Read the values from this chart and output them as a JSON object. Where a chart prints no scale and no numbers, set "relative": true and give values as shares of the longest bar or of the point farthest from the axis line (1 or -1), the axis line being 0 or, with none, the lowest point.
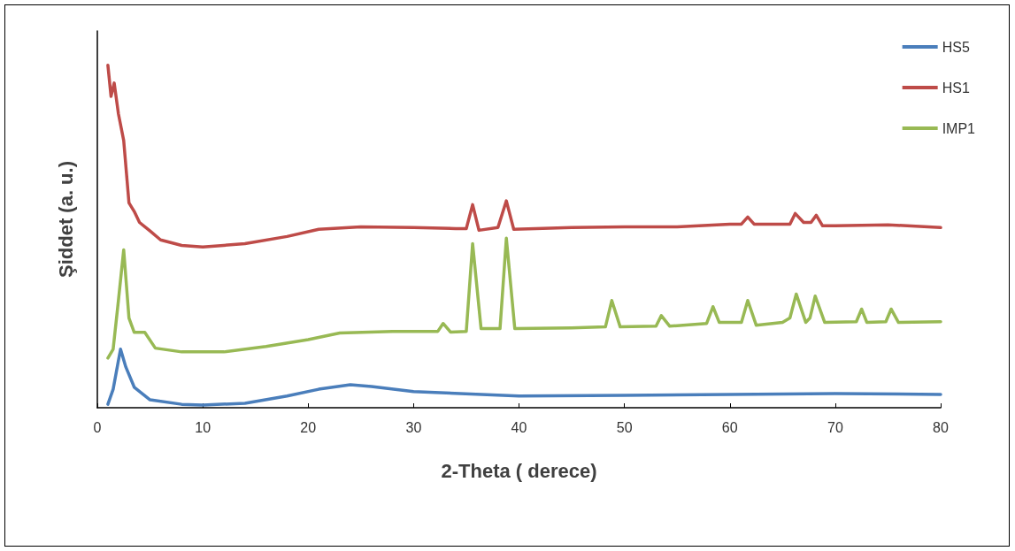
{
  "chart_data": {
    "type": "line",
    "relative": true,
    "xlabel": "2-Theta ( derece)",
    "ylabel": "Şiddet (a. u.)",
    "xlim": [
      0,
      80
    ],
    "xticks": [
      0,
      10,
      20,
      30,
      40,
      50,
      60,
      70,
      80
    ],
    "grid": false,
    "legend": "top right",
    "marker": "none",
    "line_style": "solid",
    "series": [
      {
        "name": "HS5",
        "color": "#4a7ebb",
        "x": [
          1,
          1.5,
          2.2,
          2.7,
          3.5,
          5,
          8,
          10,
          14,
          18,
          21,
          24,
          26,
          30,
          40,
          50,
          60,
          70,
          80
        ],
        "values": [
          0.01,
          0.054,
          0.171,
          0.119,
          0.06,
          0.023,
          0.01,
          0.008,
          0.013,
          0.034,
          0.054,
          0.067,
          0.062,
          0.047,
          0.034,
          0.036,
          0.039,
          0.041,
          0.039
        ]
      },
      {
        "name": "HS1",
        "color": "#be4b48",
        "x": [
          1,
          1.3,
          1.6,
          2,
          2.5,
          3,
          3.5,
          4,
          5,
          6,
          8,
          10,
          14,
          18,
          21,
          25,
          30,
          34,
          35,
          35.6,
          36.2,
          38,
          38.8,
          39.5,
          45,
          50,
          55,
          60,
          61.1,
          61.7,
          62.3,
          65,
          65.7,
          66.2,
          67,
          67.7,
          68.2,
          68.8,
          70,
          75,
          80
        ],
        "values": [
          1,
          0.909,
          0.948,
          0.858,
          0.78,
          0.598,
          0.573,
          0.541,
          0.516,
          0.49,
          0.474,
          0.469,
          0.479,
          0.5,
          0.521,
          0.528,
          0.526,
          0.523,
          0.523,
          0.593,
          0.518,
          0.526,
          0.604,
          0.521,
          0.526,
          0.528,
          0.528,
          0.536,
          0.536,
          0.557,
          0.536,
          0.536,
          0.536,
          0.567,
          0.541,
          0.541,
          0.562,
          0.531,
          0.531,
          0.534,
          0.526
        ]
      },
      {
        "name": "IMP1",
        "color": "#98b954",
        "x": [
          1,
          1.5,
          2,
          2.5,
          3,
          3.5,
          4.5,
          5.5,
          8,
          12,
          16,
          20,
          23,
          28,
          32.3,
          32.8,
          33.5,
          35,
          35.6,
          36.4,
          38.2,
          38.8,
          39.6,
          45,
          48.2,
          48.8,
          49.6,
          53,
          53.5,
          54.3,
          57.8,
          58.4,
          59,
          61.1,
          61.7,
          62.5,
          65,
          65.7,
          66.3,
          67.2,
          67.6,
          68.1,
          69,
          72,
          72.5,
          73,
          74.8,
          75.3,
          76,
          80
        ],
        "values": [
          0.145,
          0.171,
          0.313,
          0.461,
          0.262,
          0.22,
          0.22,
          0.174,
          0.163,
          0.163,
          0.179,
          0.199,
          0.218,
          0.223,
          0.223,
          0.246,
          0.221,
          0.223,
          0.479,
          0.231,
          0.231,
          0.495,
          0.231,
          0.233,
          0.236,
          0.313,
          0.236,
          0.238,
          0.269,
          0.238,
          0.246,
          0.295,
          0.249,
          0.249,
          0.313,
          0.241,
          0.249,
          0.262,
          0.332,
          0.249,
          0.262,
          0.326,
          0.249,
          0.251,
          0.288,
          0.249,
          0.251,
          0.288,
          0.249,
          0.251
        ]
      }
    ]
  }
}
